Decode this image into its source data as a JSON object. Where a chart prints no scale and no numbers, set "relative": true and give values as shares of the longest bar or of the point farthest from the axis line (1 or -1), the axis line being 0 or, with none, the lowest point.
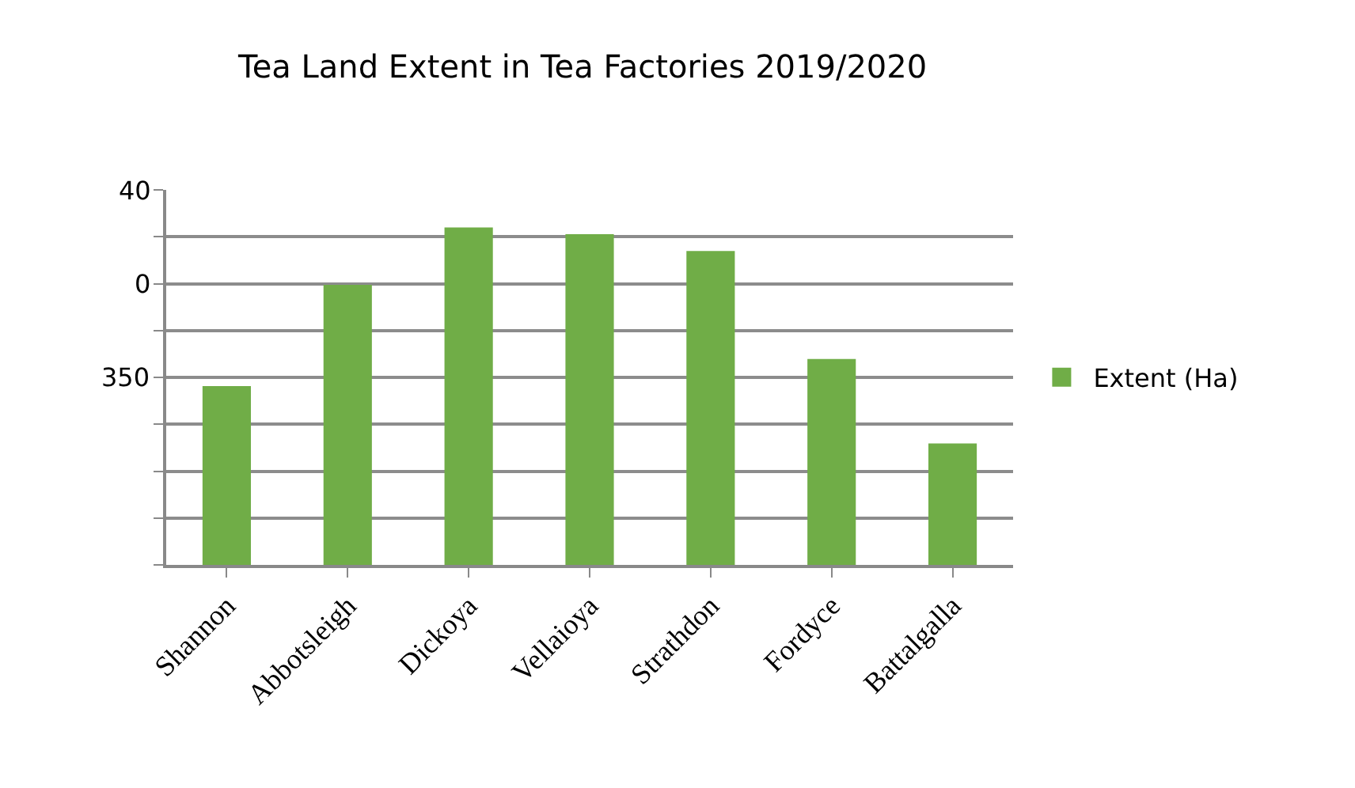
{
  "chart_data": {
    "type": "bar",
    "title": "Tea Land Extent in Tea Factories 2019/2020",
    "categories": [
      "Shannon",
      "Abbotsleigh",
      "Dickoya",
      "Vellaioya",
      "Strathdon",
      "Fordyce",
      "Battalgalla"
    ],
    "series": [
      {
        "name": "Extent (Ha)",
        "color": "#70ad47",
        "values": [
          0.53,
          0.83,
          1,
          0.98,
          0.93,
          0.61,
          0.36
        ]
      }
    ],
    "relative": true,
    "annotations": [
      "40",
      "0",
      "350"
    ],
    "grid": "y",
    "legend": "right"
  }
}
